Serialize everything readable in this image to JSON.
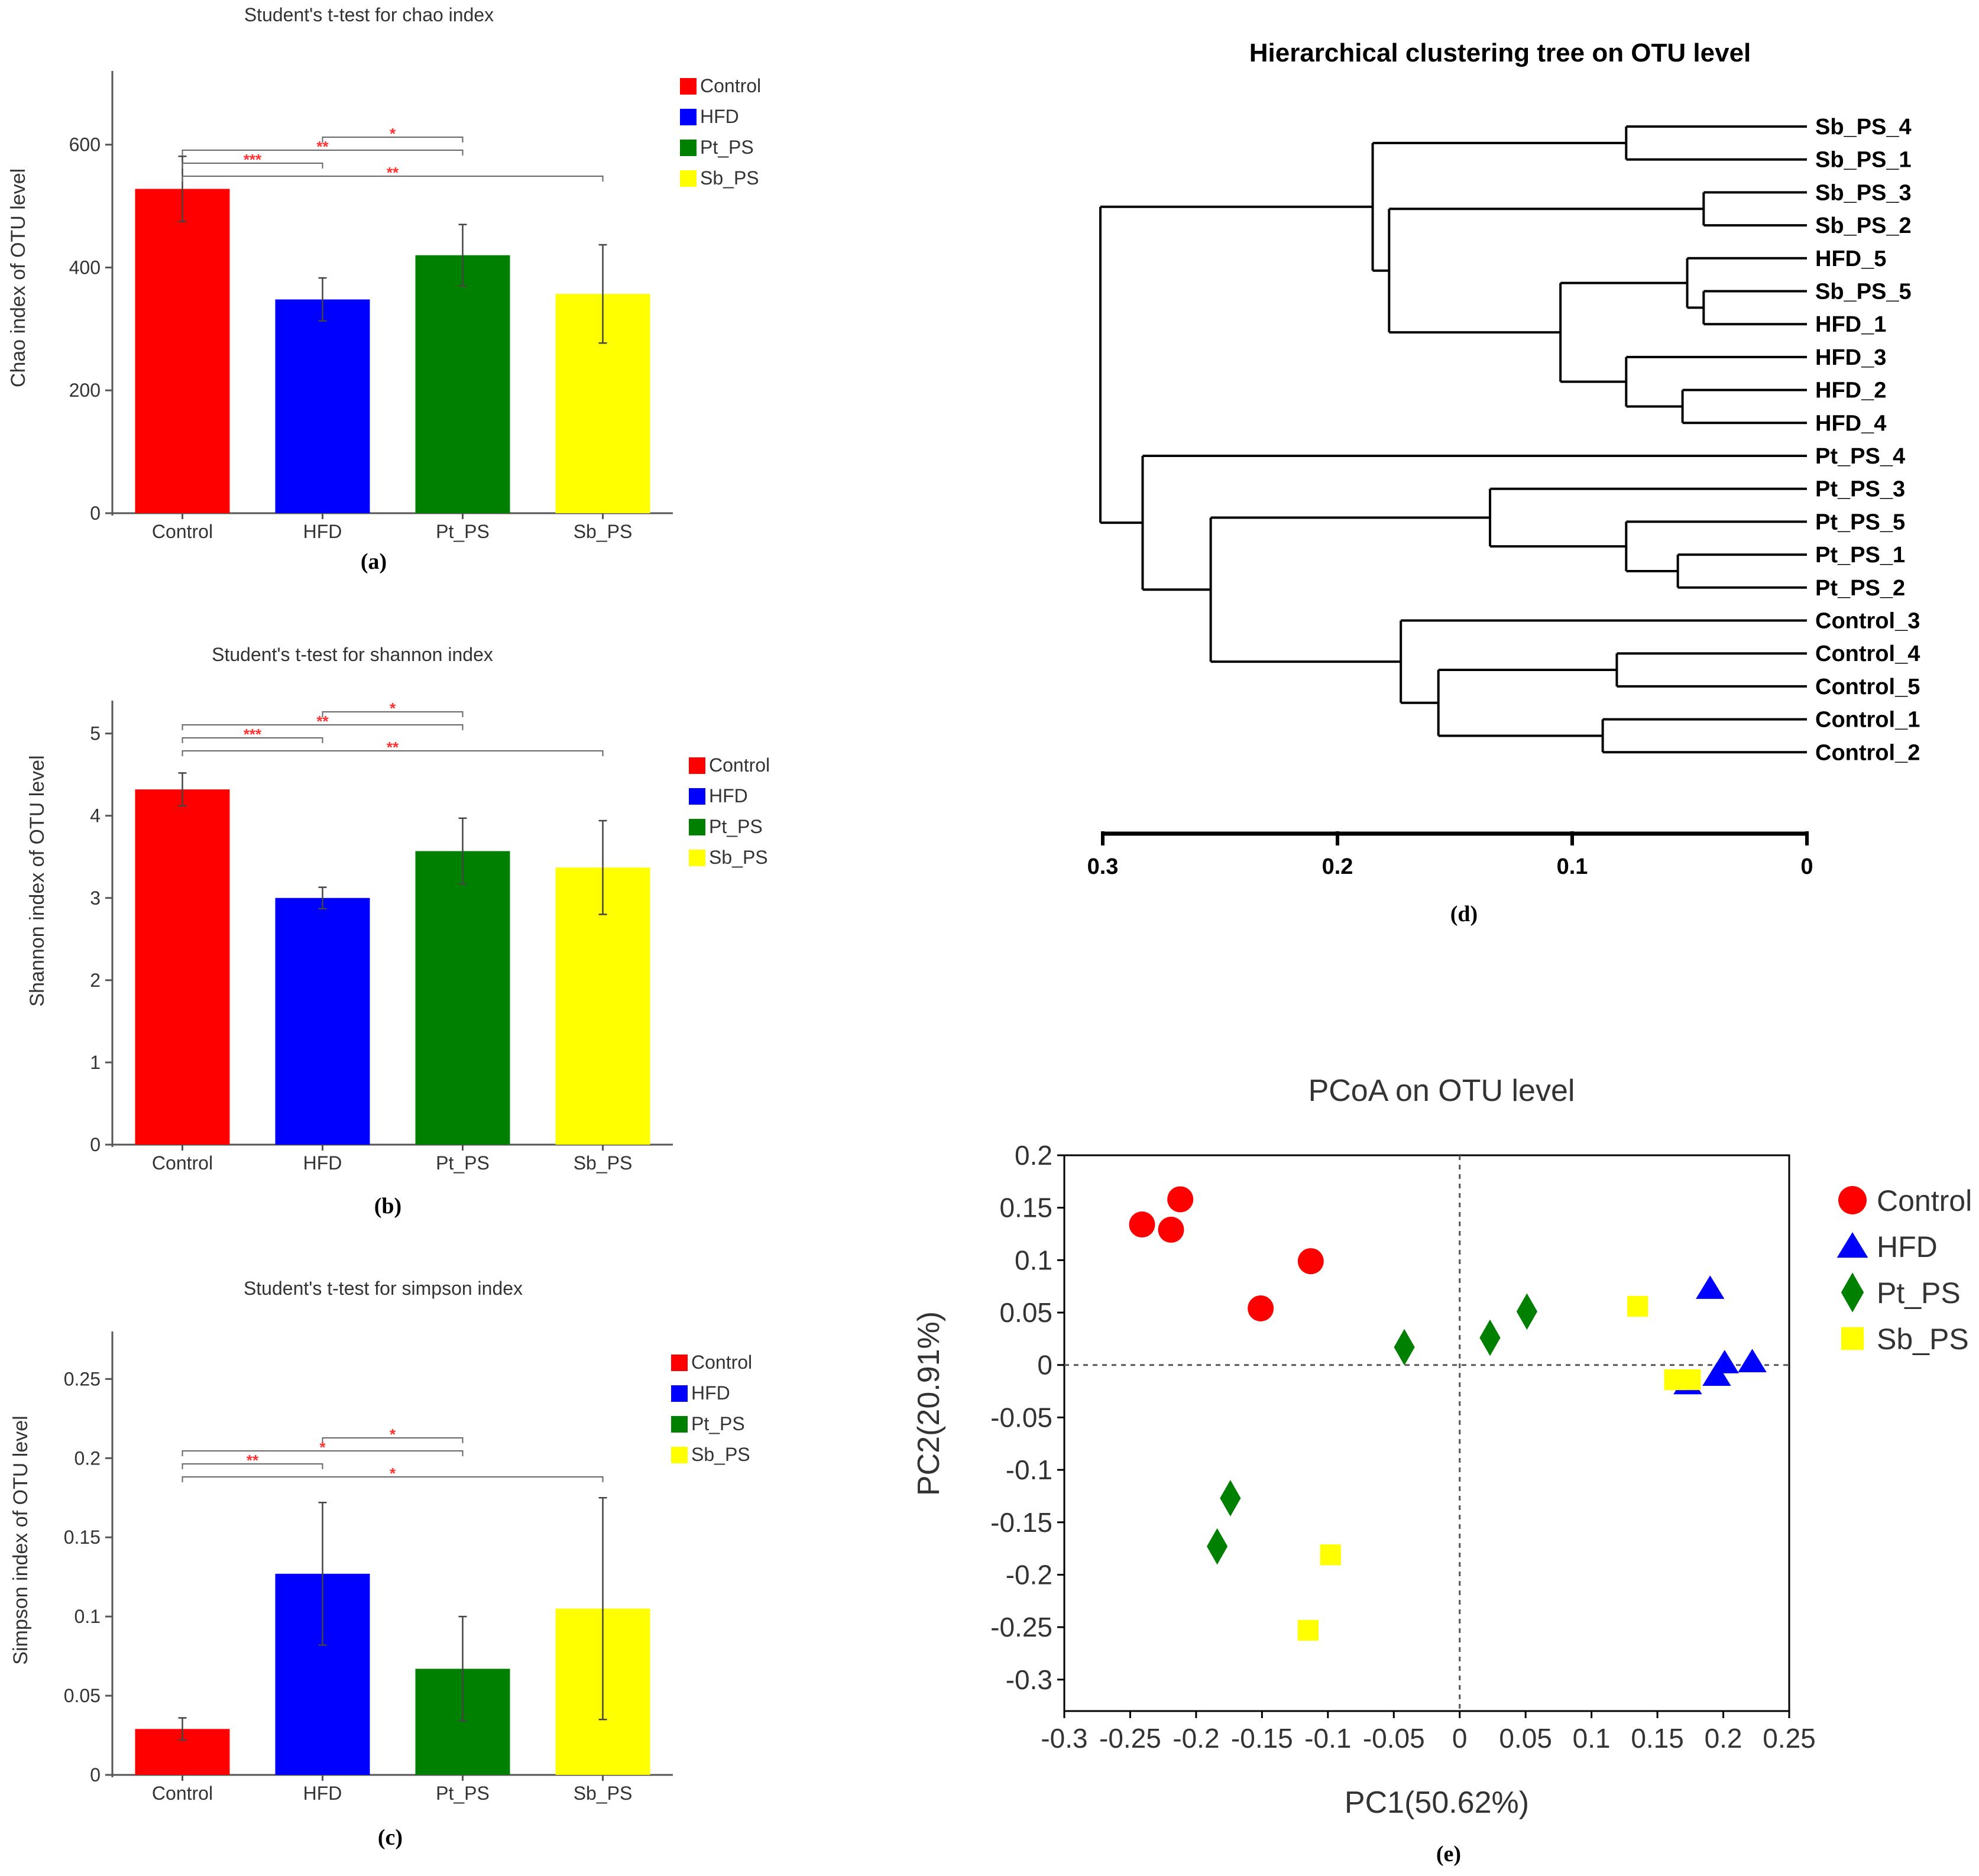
{
  "colors": {
    "Control": "#ff0000",
    "HFD": "#0000ff",
    "Pt_PS": "#008000",
    "Sb_PS": "#ffff00",
    "sig": "#ff3333",
    "axis": "#555555"
  },
  "legend_labels": [
    "Control",
    "HFD",
    "Pt_PS",
    "Sb_PS"
  ],
  "panels": {
    "a": {
      "caption": "(a)",
      "chart_data": {
        "type": "bar",
        "title": "Student's t-test for chao index",
        "ylabel": "Chao index of OTU level",
        "xlabel": "",
        "categories": [
          "Control",
          "HFD",
          "Pt_PS",
          "Sb_PS"
        ],
        "values": [
          528,
          348,
          420,
          357
        ],
        "errors": [
          53,
          35,
          50,
          80
        ],
        "ylim": [
          0,
          720
        ],
        "yticks": [
          0,
          200,
          400,
          600
        ],
        "ytick_labels": [
          "0",
          "200",
          "400",
          "600"
        ],
        "significance": [
          {
            "from": 1,
            "to": 2,
            "label": "*",
            "level": 1
          },
          {
            "from": 0,
            "to": 2,
            "label": "**",
            "level": 2
          },
          {
            "from": 0,
            "to": 1,
            "label": "***",
            "level": 3
          },
          {
            "from": 0,
            "to": 3,
            "label": "**",
            "level": 4
          }
        ]
      }
    },
    "b": {
      "caption": "(b)",
      "chart_data": {
        "type": "bar",
        "title": "Student's t-test for shannon index",
        "ylabel": "Shannon index of OTU level",
        "xlabel": "",
        "categories": [
          "Control",
          "HFD",
          "Pt_PS",
          "Sb_PS"
        ],
        "values": [
          4.32,
          3.0,
          3.57,
          3.37
        ],
        "errors": [
          0.2,
          0.13,
          0.4,
          0.57
        ],
        "ylim": [
          0,
          5.4
        ],
        "yticks": [
          0,
          1,
          2,
          3,
          4,
          5
        ],
        "ytick_labels": [
          "0",
          "1",
          "2",
          "3",
          "4",
          "5"
        ],
        "significance": [
          {
            "from": 1,
            "to": 2,
            "label": "*",
            "level": 1
          },
          {
            "from": 0,
            "to": 2,
            "label": "**",
            "level": 2
          },
          {
            "from": 0,
            "to": 1,
            "label": "***",
            "level": 3
          },
          {
            "from": 0,
            "to": 3,
            "label": "**",
            "level": 4
          }
        ]
      }
    },
    "c": {
      "caption": "(c)",
      "chart_data": {
        "type": "bar",
        "title": "Student's t-test for simpson index",
        "ylabel": "Simpson index of OTU level",
        "xlabel": "",
        "categories": [
          "Control",
          "HFD",
          "Pt_PS",
          "Sb_PS"
        ],
        "values": [
          0.029,
          0.127,
          0.067,
          0.105
        ],
        "errors": [
          0.007,
          0.045,
          0.033,
          0.07
        ],
        "ylim": [
          0,
          0.28
        ],
        "yticks": [
          0,
          0.05,
          0.1,
          0.15,
          0.2,
          0.25
        ],
        "ytick_labels": [
          "0",
          "0.05",
          "0.1",
          "0.15",
          "0.2",
          "0.25"
        ],
        "significance": [
          {
            "from": 1,
            "to": 2,
            "label": "*",
            "level": 1
          },
          {
            "from": 0,
            "to": 2,
            "label": "*",
            "level": 2
          },
          {
            "from": 0,
            "to": 1,
            "label": "**",
            "level": 3
          },
          {
            "from": 0,
            "to": 3,
            "label": "*",
            "level": 4
          }
        ]
      }
    },
    "d": {
      "caption": "(d)",
      "chart_data": {
        "type": "dendrogram",
        "title": "Hierarchical clustering tree on OTU level",
        "leaves": [
          "Sb_PS_4",
          "Sb_PS_1",
          "Sb_PS_3",
          "Sb_PS_2",
          "HFD_5",
          "Sb_PS_5",
          "HFD_1",
          "HFD_3",
          "HFD_2",
          "HFD_4",
          "Pt_PS_4",
          "Pt_PS_3",
          "Pt_PS_5",
          "Pt_PS_1",
          "Pt_PS_2",
          "Control_3",
          "Control_4",
          "Control_5",
          "Control_1",
          "Control_2"
        ],
        "xlim": [
          0.3,
          0
        ],
        "xticks": [
          0.3,
          0.2,
          0.1,
          0
        ],
        "xtick_labels": [
          "0.3",
          "0.2",
          "0.1",
          "0"
        ],
        "tree": {
          "h": 0.301,
          "c": [
            {
              "h": 0.185,
              "c": [
                {
                  "h": 0.077,
                  "c": [
                    {
                      "l": 0
                    },
                    {
                      "l": 1
                    }
                  ]
                },
                {
                  "h": 0.178,
                  "c": [
                    {
                      "h": 0.044,
                      "c": [
                        {
                          "l": 2
                        },
                        {
                          "l": 3
                        }
                      ]
                    },
                    {
                      "h": 0.105,
                      "c": [
                        {
                          "h": 0.051,
                          "c": [
                            {
                              "l": 4
                            },
                            {
                              "h": 0.044,
                              "c": [
                                {
                                  "l": 5
                                },
                                {
                                  "l": 6
                                }
                              ]
                            }
                          ]
                        },
                        {
                          "h": 0.077,
                          "c": [
                            {
                              "l": 7
                            },
                            {
                              "h": 0.053,
                              "c": [
                                {
                                  "l": 8
                                },
                                {
                                  "l": 9
                                }
                              ]
                            }
                          ]
                        }
                      ]
                    }
                  ]
                }
              ]
            },
            {
              "h": 0.283,
              "c": [
                {
                  "l": 10
                },
                {
                  "h": 0.254,
                  "c": [
                    {
                      "h": 0.135,
                      "c": [
                        {
                          "l": 11
                        },
                        {
                          "h": 0.077,
                          "c": [
                            {
                              "l": 12
                            },
                            {
                              "h": 0.055,
                              "c": [
                                {
                                  "l": 13
                                },
                                {
                                  "l": 14
                                }
                              ]
                            }
                          ]
                        }
                      ]
                    },
                    {
                      "h": 0.173,
                      "c": [
                        {
                          "l": 15
                        },
                        {
                          "h": 0.157,
                          "c": [
                            {
                              "h": 0.081,
                              "c": [
                                {
                                  "l": 16
                                },
                                {
                                  "l": 17
                                }
                              ]
                            },
                            {
                              "h": 0.087,
                              "c": [
                                {
                                  "l": 18
                                },
                                {
                                  "l": 19
                                }
                              ]
                            }
                          ]
                        }
                      ]
                    }
                  ]
                }
              ]
            }
          ]
        }
      }
    },
    "e": {
      "caption": "(e)",
      "chart_data": {
        "type": "scatter",
        "title": "PCoA on OTU level",
        "xlabel": "PC1(50.62%)",
        "ylabel": "PC2(20.91%)",
        "xlim": [
          -0.3,
          0.25
        ],
        "ylim": [
          -0.33,
          0.2
        ],
        "xticks": [
          -0.3,
          -0.25,
          -0.2,
          -0.15,
          -0.1,
          -0.05,
          0,
          0.05,
          0.1,
          0.15,
          0.2,
          0.25
        ],
        "xtick_labels": [
          "-0.3",
          "-0.25",
          "-0.2",
          "-0.15",
          "-0.1",
          "-0.05",
          "0",
          "0.05",
          "0.1",
          "0.15",
          "0.2",
          "0.25"
        ],
        "yticks": [
          0.2,
          0.15,
          0.1,
          0.05,
          0,
          -0.05,
          -0.1,
          -0.15,
          -0.2,
          -0.25,
          -0.3
        ],
        "ytick_labels": [
          "0.2",
          "0.15",
          "0.1",
          "0.05",
          "0",
          "-0.05",
          "-0.1",
          "-0.15",
          "-0.2",
          "-0.25",
          "-0.3"
        ],
        "series": [
          {
            "name": "Control",
            "marker": "circle",
            "points": [
              [
                -0.241,
                0.134
              ],
              [
                -0.219,
                0.129
              ],
              [
                -0.212,
                0.158
              ],
              [
                -0.113,
                0.099
              ],
              [
                -0.151,
                0.054
              ]
            ]
          },
          {
            "name": "HFD",
            "marker": "triangle",
            "points": [
              [
                0.19,
                0.073
              ],
              [
                0.201,
                0.002
              ],
              [
                0.222,
                0.003
              ],
              [
                0.195,
                -0.01
              ],
              [
                0.173,
                -0.018
              ]
            ]
          },
          {
            "name": "Pt_PS",
            "marker": "diamond",
            "points": [
              [
                -0.042,
                0.017
              ],
              [
                0.023,
                0.026
              ],
              [
                0.051,
                0.051
              ],
              [
                -0.174,
                -0.127
              ],
              [
                -0.184,
                -0.173
              ]
            ]
          },
          {
            "name": "Sb_PS",
            "marker": "square",
            "points": [
              [
                0.135,
                0.056
              ],
              [
                0.163,
                -0.014
              ],
              [
                0.175,
                -0.014
              ],
              [
                -0.098,
                -0.181
              ],
              [
                -0.115,
                -0.253
              ]
            ]
          }
        ]
      }
    }
  }
}
